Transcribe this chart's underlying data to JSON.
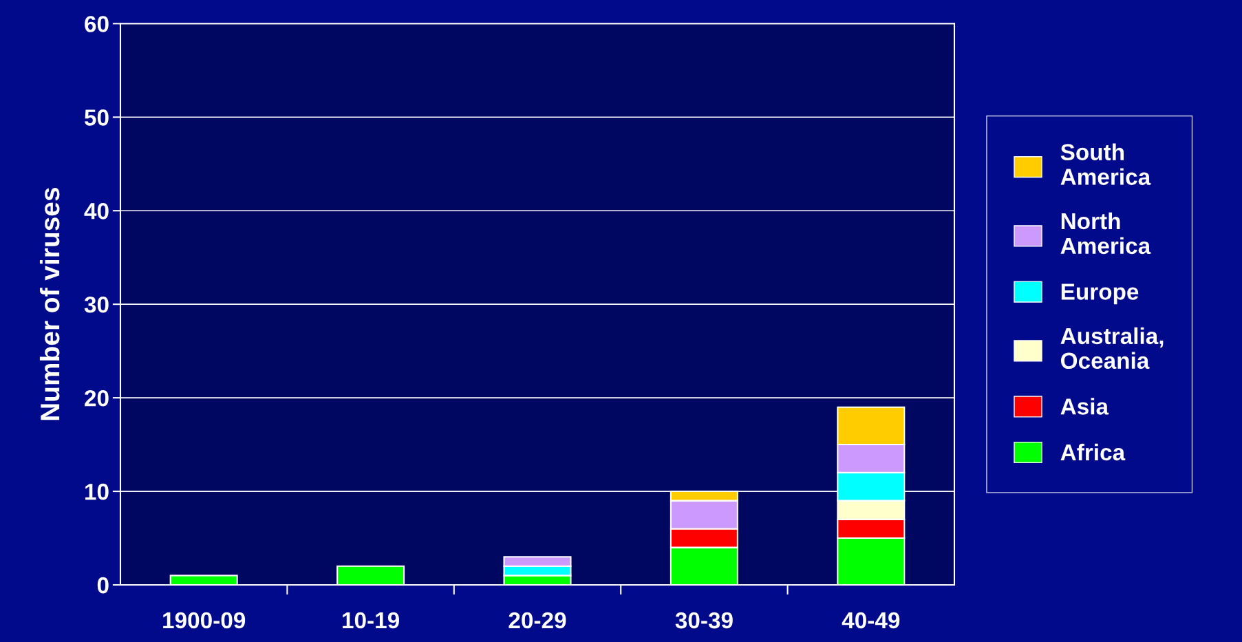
{
  "chart_data": {
    "type": "bar",
    "stacked": true,
    "ylabel": "Number of viruses",
    "categories": [
      "1900-09",
      "10-19",
      "20-29",
      "30-39",
      "40-49"
    ],
    "series": [
      {
        "name": "Africa",
        "color": "#00ff00",
        "values": [
          1,
          2,
          1,
          4,
          5
        ]
      },
      {
        "name": "Asia",
        "color": "#ff0000",
        "values": [
          null,
          null,
          null,
          2,
          2
        ]
      },
      {
        "name": "Australia,\nOceania",
        "color": "#ffffcc",
        "values": [
          null,
          null,
          null,
          null,
          2
        ]
      },
      {
        "name": "Europe",
        "color": "#00ffff",
        "values": [
          null,
          null,
          1,
          null,
          3
        ]
      },
      {
        "name": "North\nAmerica",
        "color": "#cc99ff",
        "values": [
          null,
          null,
          1,
          3,
          3
        ]
      },
      {
        "name": "South\nAmerica",
        "color": "#ffcc00",
        "values": [
          null,
          null,
          null,
          1,
          4
        ]
      }
    ],
    "ylim": [
      0,
      60
    ],
    "yticks": [
      0,
      10,
      20,
      30,
      40,
      50,
      60
    ],
    "grid": "y",
    "legend": "right"
  }
}
